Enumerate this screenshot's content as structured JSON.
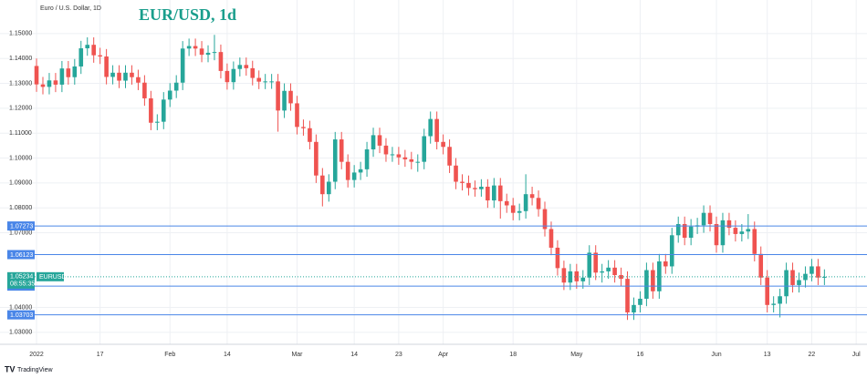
{
  "chart_data": {
    "type": "candlestick",
    "title": "EUR/USD, 1d",
    "subtitle": "Euro / U.S. Dollar, 1D",
    "countdown": "08:55:35",
    "watermark": "TradingView",
    "last_price": 1.05234,
    "levels": [
      1.07273,
      1.06123,
      1.04857,
      1.03703
    ],
    "level_color": "#4a86e8",
    "up_color": "#26a69a",
    "down_color": "#ef5350",
    "grid": true,
    "ylim": [
      1.0252,
      1.1635
    ],
    "yticks": [
      {
        "value": 1.15,
        "label": "1.15000"
      },
      {
        "value": 1.14,
        "label": "1.14000"
      },
      {
        "value": 1.13,
        "label": "1.13000"
      },
      {
        "value": 1.12,
        "label": "1.12000"
      },
      {
        "value": 1.11,
        "label": "1.11000"
      },
      {
        "value": 1.1,
        "label": "1.10000"
      },
      {
        "value": 1.09,
        "label": "1.09000"
      },
      {
        "value": 1.08,
        "label": "1.08000"
      },
      {
        "value": 1.07,
        "label": "1.07000"
      },
      {
        "value": 1.04,
        "label": "1.04000"
      },
      {
        "value": 1.03,
        "label": "1.03000"
      }
    ],
    "xlim": [
      -5.75,
      130.7
    ],
    "xticks": [
      {
        "value": 0,
        "label": "2022"
      },
      {
        "value": 10,
        "label": "17"
      },
      {
        "value": 21,
        "label": "Feb"
      },
      {
        "value": 30,
        "label": "14"
      },
      {
        "value": 41,
        "label": "Mar"
      },
      {
        "value": 50,
        "label": "14"
      },
      {
        "value": 57,
        "label": "23"
      },
      {
        "value": 64,
        "label": "Apr"
      },
      {
        "value": 75,
        "label": "18"
      },
      {
        "value": 85,
        "label": "May"
      },
      {
        "value": 95,
        "label": "16"
      },
      {
        "value": 107,
        "label": "Jun"
      },
      {
        "value": 115,
        "label": "13"
      },
      {
        "value": 122,
        "label": "22"
      },
      {
        "value": 129,
        "label": "Jul"
      }
    ],
    "series": [
      {
        "name": "EURUSD",
        "open": [
          1.137,
          1.1296,
          1.1286,
          1.1312,
          1.1295,
          1.136,
          1.1325,
          1.1368,
          1.1441,
          1.1455,
          1.1413,
          1.1408,
          1.1326,
          1.1343,
          1.1311,
          1.1343,
          1.1325,
          1.1303,
          1.124,
          1.1142,
          1.1146,
          1.1235,
          1.1271,
          1.1303,
          1.144,
          1.145,
          1.144,
          1.1415,
          1.1423,
          1.1426,
          1.135,
          1.1305,
          1.1358,
          1.1374,
          1.1361,
          1.1322,
          1.1307,
          1.1308,
          1.1308,
          1.1191,
          1.127,
          1.122,
          1.1125,
          1.112,
          1.1065,
          1.093,
          1.0855,
          1.0905,
          1.1075,
          1.0985,
          1.0912,
          1.0942,
          1.0955,
          1.1035,
          1.1092,
          1.105,
          1.1015,
          1.1015,
          1.1003,
          1.0995,
          1.0985,
          1.0985,
          1.1088,
          1.1157,
          1.1065,
          1.1045,
          1.097,
          1.0905,
          1.09,
          1.088,
          1.0875,
          1.0885,
          1.083,
          1.089,
          1.0827,
          1.081,
          1.078,
          1.0787,
          1.0855,
          1.084,
          1.0795,
          1.0715,
          1.064,
          1.0558,
          1.05,
          1.0545,
          1.0505,
          1.052,
          1.062,
          1.054,
          1.0545,
          1.056,
          1.053,
          1.0515,
          1.038,
          1.041,
          1.0435,
          1.055,
          1.0465,
          1.0585,
          1.0565,
          1.069,
          1.0735,
          1.068,
          1.0725,
          1.073,
          1.078,
          1.0735,
          1.065,
          1.075,
          1.072,
          1.0695,
          1.0705,
          1.0715,
          1.0615,
          1.052,
          1.041,
          1.0415,
          1.0445,
          1.055,
          1.049,
          1.051,
          1.0535,
          1.0565,
          1.052
        ],
        "high": [
          1.14,
          1.1326,
          1.1342,
          1.1342,
          1.139,
          1.139,
          1.1398,
          1.1471,
          1.1485,
          1.1485,
          1.1443,
          1.1438,
          1.1373,
          1.1373,
          1.1373,
          1.1373,
          1.1355,
          1.1333,
          1.127,
          1.1176,
          1.1265,
          1.1301,
          1.1333,
          1.147,
          1.148,
          1.148,
          1.147,
          1.1453,
          1.1495,
          1.1456,
          1.138,
          1.1388,
          1.1404,
          1.1404,
          1.1391,
          1.1352,
          1.1338,
          1.1338,
          1.1338,
          1.13,
          1.13,
          1.125,
          1.1155,
          1.115,
          1.1095,
          1.096,
          1.0935,
          1.1105,
          1.1105,
          1.1015,
          1.0972,
          1.0985,
          1.1065,
          1.1122,
          1.1122,
          1.108,
          1.1045,
          1.1045,
          1.1033,
          1.1025,
          1.1015,
          1.1118,
          1.1187,
          1.1187,
          1.1095,
          1.1075,
          1.1,
          1.0935,
          1.093,
          1.091,
          1.0915,
          1.0915,
          1.092,
          1.092,
          1.0857,
          1.084,
          1.0817,
          1.0935,
          1.0885,
          1.087,
          1.0825,
          1.0745,
          1.067,
          1.0588,
          1.0575,
          1.0575,
          1.055,
          1.065,
          1.065,
          1.0575,
          1.059,
          1.059,
          1.056,
          1.0545,
          1.044,
          1.0465,
          1.058,
          1.058,
          1.0615,
          1.0615,
          1.072,
          1.0765,
          1.0765,
          1.0755,
          1.076,
          1.081,
          1.081,
          1.0765,
          1.078,
          1.078,
          1.075,
          1.0735,
          1.0775,
          1.0745,
          1.0645,
          1.055,
          1.0445,
          1.0475,
          1.058,
          1.058,
          1.054,
          1.0565,
          1.0595,
          1.0595,
          1.0553
        ],
        "low": [
          1.1266,
          1.1256,
          1.1256,
          1.1265,
          1.1265,
          1.1295,
          1.1295,
          1.1338,
          1.1411,
          1.1383,
          1.1378,
          1.1296,
          1.1296,
          1.1281,
          1.1281,
          1.1295,
          1.1273,
          1.121,
          1.1112,
          1.1112,
          1.1116,
          1.1205,
          1.1241,
          1.1273,
          1.141,
          1.141,
          1.1385,
          1.1385,
          1.1393,
          1.132,
          1.1275,
          1.1275,
          1.1328,
          1.1331,
          1.1292,
          1.1277,
          1.1277,
          1.1278,
          1.1106,
          1.1161,
          1.119,
          1.1095,
          1.109,
          1.1035,
          1.09,
          1.0806,
          1.0825,
          1.0875,
          1.0955,
          1.0882,
          1.0882,
          1.0912,
          1.0925,
          1.1005,
          1.102,
          1.0985,
          1.0985,
          1.0973,
          1.0965,
          1.0955,
          1.0945,
          1.0955,
          1.1058,
          1.1035,
          1.1015,
          1.094,
          1.0875,
          1.087,
          1.085,
          1.0845,
          1.0845,
          1.08,
          1.08,
          1.0757,
          1.078,
          1.075,
          1.075,
          1.0757,
          1.081,
          1.0765,
          1.0685,
          1.061,
          1.0528,
          1.047,
          1.047,
          1.0475,
          1.0475,
          1.049,
          1.051,
          1.05,
          1.0515,
          1.05,
          1.0485,
          1.035,
          1.035,
          1.038,
          1.0405,
          1.0435,
          1.0435,
          1.0535,
          1.0535,
          1.066,
          1.065,
          1.065,
          1.0695,
          1.07,
          1.0705,
          1.062,
          1.062,
          1.069,
          1.0665,
          1.0665,
          1.0675,
          1.0585,
          1.049,
          1.038,
          1.038,
          1.036,
          1.0415,
          1.046,
          1.046,
          1.048,
          1.0505,
          1.049,
          1.049
        ],
        "close": [
          1.1296,
          1.1286,
          1.1312,
          1.1295,
          1.136,
          1.1325,
          1.1368,
          1.1441,
          1.1455,
          1.1413,
          1.1408,
          1.1326,
          1.1343,
          1.1311,
          1.1343,
          1.1325,
          1.1303,
          1.124,
          1.1142,
          1.1146,
          1.1235,
          1.1271,
          1.1303,
          1.144,
          1.145,
          1.144,
          1.1415,
          1.1423,
          1.1426,
          1.135,
          1.1305,
          1.1358,
          1.1374,
          1.1361,
          1.1322,
          1.1307,
          1.1308,
          1.1308,
          1.1191,
          1.127,
          1.122,
          1.1125,
          1.112,
          1.1065,
          1.093,
          1.0855,
          1.0905,
          1.1075,
          1.0985,
          1.0912,
          1.0942,
          1.0955,
          1.1035,
          1.1092,
          1.105,
          1.1015,
          1.1015,
          1.1003,
          1.0995,
          1.0985,
          1.0985,
          1.1088,
          1.1157,
          1.1065,
          1.1045,
          1.097,
          1.0905,
          1.09,
          1.088,
          1.0875,
          1.0885,
          1.083,
          1.089,
          1.0827,
          1.081,
          1.078,
          1.0787,
          1.0855,
          1.084,
          1.0795,
          1.0715,
          1.064,
          1.0558,
          1.05,
          1.0545,
          1.0505,
          1.052,
          1.062,
          1.054,
          1.0545,
          1.056,
          1.053,
          1.0515,
          1.038,
          1.041,
          1.0435,
          1.055,
          1.0465,
          1.0585,
          1.0565,
          1.069,
          1.0735,
          1.068,
          1.0725,
          1.073,
          1.078,
          1.0735,
          1.065,
          1.075,
          1.072,
          1.0695,
          1.0705,
          1.0715,
          1.0615,
          1.052,
          1.041,
          1.0415,
          1.0445,
          1.055,
          1.049,
          1.051,
          1.0535,
          1.0565,
          1.052,
          1.0523
        ]
      }
    ]
  }
}
